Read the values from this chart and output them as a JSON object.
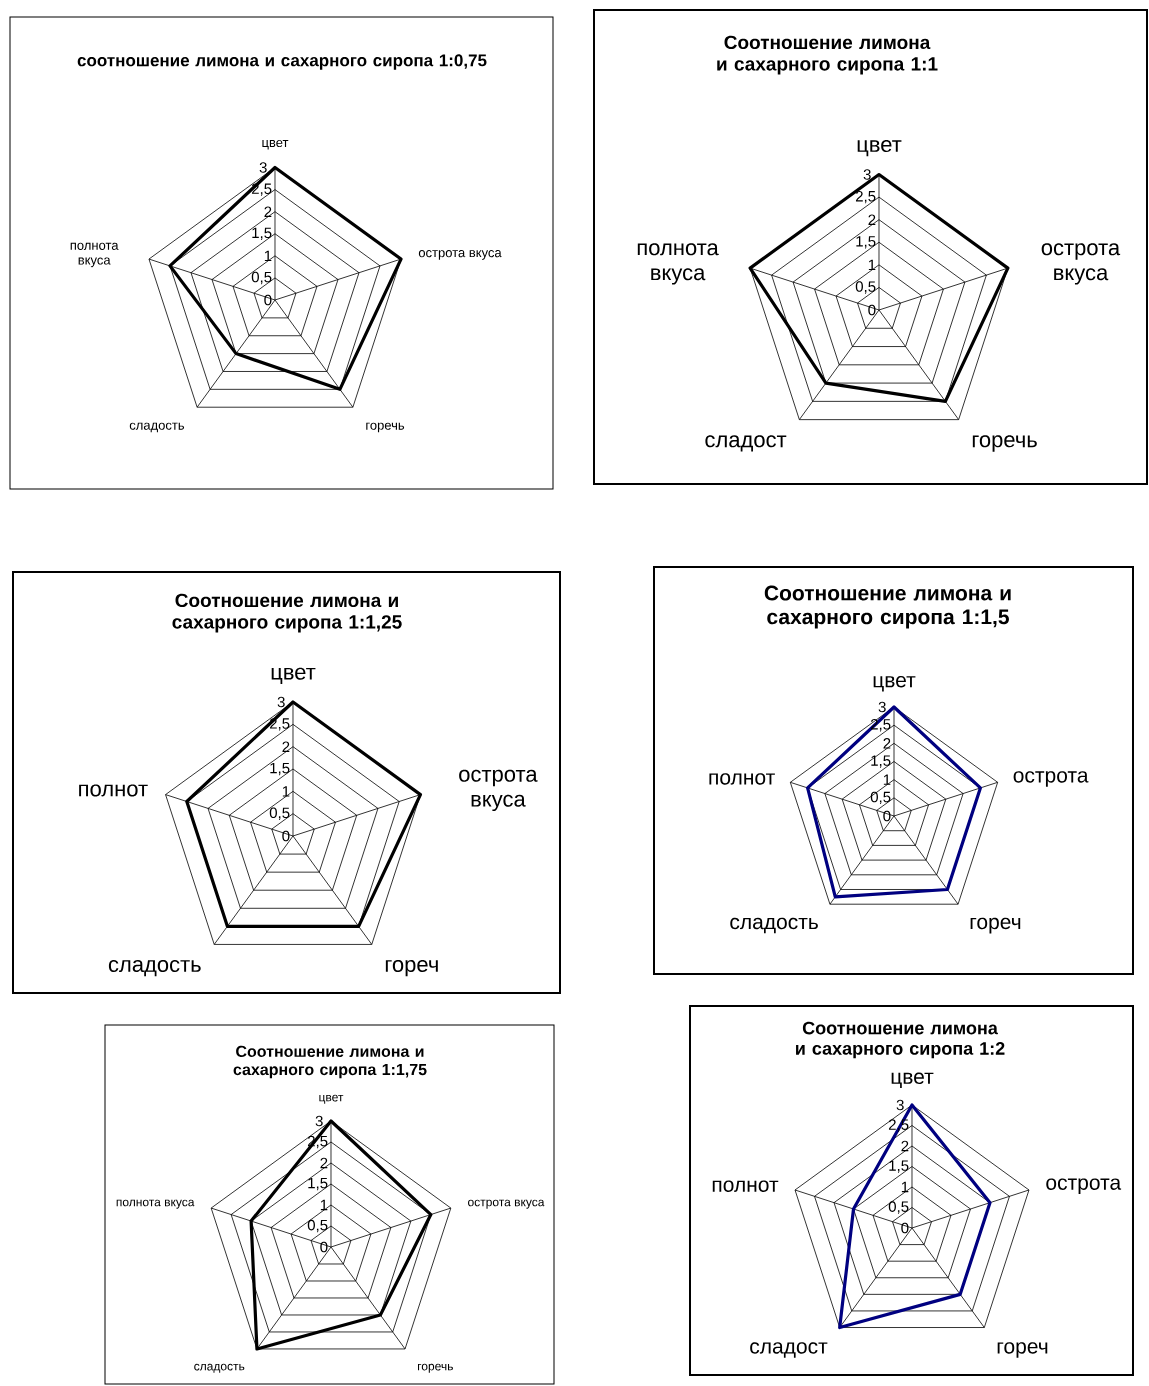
{
  "chart_data": [
    {
      "type": "radar",
      "title": "соотношение лимона и сахарного сиропа 1:0,75",
      "categories": [
        "цвет",
        "острота  вкуса",
        "горечь",
        "сладость",
        "полнота вкуса"
      ],
      "series": [
        {
          "color": "#000000",
          "values": [
            3,
            3,
            2.5,
            1.5,
            2.5
          ]
        }
      ],
      "ylim": [
        0,
        3
      ],
      "yticks": [
        {
          "value": 0,
          "label": "0"
        },
        {
          "value": 0.5,
          "label": "0,5"
        },
        {
          "value": 1,
          "label": "1"
        },
        {
          "value": 1.5,
          "label": "1,5"
        },
        {
          "value": 2,
          "label": "2"
        },
        {
          "value": 2.5,
          "label": "2,5"
        },
        {
          "value": 3,
          "label": "3"
        }
      ],
      "grid": true
    },
    {
      "type": "radar",
      "title": "Соотношение лимона и сахарного сиропа 1:1",
      "categories": [
        "цвет",
        "острота вкуса",
        "горечь",
        "сладост",
        "полнота вкуса"
      ],
      "series": [
        {
          "color": "#000000",
          "values": [
            3,
            3,
            2.5,
            2,
            3
          ]
        }
      ],
      "ylim": [
        0,
        3
      ],
      "yticks": [
        {
          "value": 0,
          "label": "0"
        },
        {
          "value": 0.5,
          "label": "0,5"
        },
        {
          "value": 1,
          "label": "1"
        },
        {
          "value": 1.5,
          "label": "1,5"
        },
        {
          "value": 2,
          "label": "2"
        },
        {
          "value": 2.5,
          "label": "2,5"
        },
        {
          "value": 3,
          "label": "3"
        }
      ],
      "grid": true
    },
    {
      "type": "radar",
      "title": "Соотношение лимона и сахарного сиропа 1:1,25",
      "categories": [
        "цвет",
        "острота вкуса",
        "гореч",
        "сладость",
        "полнот"
      ],
      "series": [
        {
          "color": "#000000",
          "values": [
            3,
            3,
            2.5,
            2.5,
            2.5
          ]
        }
      ],
      "ylim": [
        0,
        3
      ],
      "yticks": [
        {
          "value": 0,
          "label": "0"
        },
        {
          "value": 0.5,
          "label": "0,5"
        },
        {
          "value": 1,
          "label": "1"
        },
        {
          "value": 1.5,
          "label": "1,5"
        },
        {
          "value": 2,
          "label": "2"
        },
        {
          "value": 2.5,
          "label": "2,5"
        },
        {
          "value": 3,
          "label": "3"
        }
      ],
      "grid": true
    },
    {
      "type": "radar",
      "title": "Соотношение лимона и сахарного сиропа 1:1,5",
      "categories": [
        "цвет",
        "острота",
        "гореч",
        "сладость",
        "полнот"
      ],
      "series": [
        {
          "color": "#000080",
          "values": [
            3,
            2.5,
            2.5,
            2.75,
            2.5
          ]
        }
      ],
      "ylim": [
        0,
        3
      ],
      "yticks": [
        {
          "value": 0,
          "label": "0"
        },
        {
          "value": 0.5,
          "label": "0,5"
        },
        {
          "value": 1,
          "label": "1"
        },
        {
          "value": 1.5,
          "label": "1,5"
        },
        {
          "value": 2,
          "label": "2"
        },
        {
          "value": 2.5,
          "label": "2,5"
        },
        {
          "value": 3,
          "label": "3"
        }
      ],
      "grid": true
    },
    {
      "type": "radar",
      "title": "Соотношение лимона и сахарного сиропа 1:1,75",
      "categories": [
        "цвет",
        "острота  вкуса",
        "горечь",
        "сладость",
        "полнота вкуса"
      ],
      "series": [
        {
          "color": "#000000",
          "values": [
            3,
            2.5,
            2,
            3,
            2
          ]
        }
      ],
      "ylim": [
        0,
        3
      ],
      "yticks": [
        {
          "value": 0,
          "label": "0"
        },
        {
          "value": 0.5,
          "label": "0,5"
        },
        {
          "value": 1,
          "label": "1"
        },
        {
          "value": 1.5,
          "label": "1,5"
        },
        {
          "value": 2,
          "label": "2"
        },
        {
          "value": 2.5,
          "label": "2,5"
        },
        {
          "value": 3,
          "label": "3"
        }
      ],
      "grid": true
    },
    {
      "type": "radar",
      "title": "Соотношение лимона и сахарного сиропа 1:2",
      "categories": [
        "цвет",
        "острота",
        "гореч",
        "сладост",
        "полнот"
      ],
      "series": [
        {
          "color": "#000080",
          "values": [
            3,
            2,
            2,
            3,
            1.5
          ]
        }
      ],
      "ylim": [
        0,
        3
      ],
      "yticks": [
        {
          "value": 0,
          "label": "0"
        },
        {
          "value": 0.5,
          "label": "0,5"
        },
        {
          "value": 1,
          "label": "1"
        },
        {
          "value": 1.5,
          "label": "1,5"
        },
        {
          "value": 2,
          "label": "2"
        },
        {
          "value": 2.5,
          "label": "2,5"
        },
        {
          "value": 3,
          "label": "3"
        }
      ],
      "grid": true
    }
  ]
}
